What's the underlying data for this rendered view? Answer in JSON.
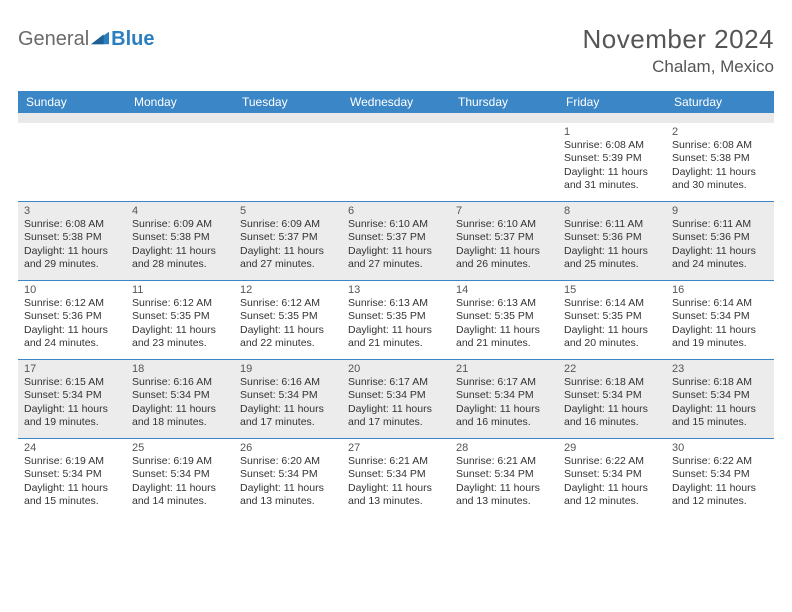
{
  "brand": {
    "part1": "General",
    "part2": "Blue"
  },
  "title": "November 2024",
  "location": "Chalam, Mexico",
  "colors": {
    "header_bg": "#3b86c6",
    "header_fg": "#ffffff",
    "alt_row_bg": "#ececec",
    "subbar_bg": "#e9e9e9",
    "rule": "#3b86c6",
    "text": "#333333",
    "muted": "#555555",
    "brand_blue": "#2b7fbf",
    "brand_gray": "#6a6a6a"
  },
  "typography": {
    "month_fontsize": 26,
    "location_fontsize": 17,
    "header_fontsize": 12,
    "cell_fontsize": 10.5
  },
  "layout": {
    "columns": 7,
    "cell_min_height": 78
  },
  "weekdays": [
    "Sunday",
    "Monday",
    "Tuesday",
    "Wednesday",
    "Thursday",
    "Friday",
    "Saturday"
  ],
  "weeks": [
    {
      "alt": false,
      "days": [
        {
          "blank": true
        },
        {
          "blank": true
        },
        {
          "blank": true
        },
        {
          "blank": true
        },
        {
          "blank": true
        },
        {
          "n": "1",
          "sunrise": "Sunrise: 6:08 AM",
          "sunset": "Sunset: 5:39 PM",
          "day1": "Daylight: 11 hours",
          "day2": "and 31 minutes."
        },
        {
          "n": "2",
          "sunrise": "Sunrise: 6:08 AM",
          "sunset": "Sunset: 5:38 PM",
          "day1": "Daylight: 11 hours",
          "day2": "and 30 minutes."
        }
      ]
    },
    {
      "alt": true,
      "days": [
        {
          "n": "3",
          "sunrise": "Sunrise: 6:08 AM",
          "sunset": "Sunset: 5:38 PM",
          "day1": "Daylight: 11 hours",
          "day2": "and 29 minutes."
        },
        {
          "n": "4",
          "sunrise": "Sunrise: 6:09 AM",
          "sunset": "Sunset: 5:38 PM",
          "day1": "Daylight: 11 hours",
          "day2": "and 28 minutes."
        },
        {
          "n": "5",
          "sunrise": "Sunrise: 6:09 AM",
          "sunset": "Sunset: 5:37 PM",
          "day1": "Daylight: 11 hours",
          "day2": "and 27 minutes."
        },
        {
          "n": "6",
          "sunrise": "Sunrise: 6:10 AM",
          "sunset": "Sunset: 5:37 PM",
          "day1": "Daylight: 11 hours",
          "day2": "and 27 minutes."
        },
        {
          "n": "7",
          "sunrise": "Sunrise: 6:10 AM",
          "sunset": "Sunset: 5:37 PM",
          "day1": "Daylight: 11 hours",
          "day2": "and 26 minutes."
        },
        {
          "n": "8",
          "sunrise": "Sunrise: 6:11 AM",
          "sunset": "Sunset: 5:36 PM",
          "day1": "Daylight: 11 hours",
          "day2": "and 25 minutes."
        },
        {
          "n": "9",
          "sunrise": "Sunrise: 6:11 AM",
          "sunset": "Sunset: 5:36 PM",
          "day1": "Daylight: 11 hours",
          "day2": "and 24 minutes."
        }
      ]
    },
    {
      "alt": false,
      "days": [
        {
          "n": "10",
          "sunrise": "Sunrise: 6:12 AM",
          "sunset": "Sunset: 5:36 PM",
          "day1": "Daylight: 11 hours",
          "day2": "and 24 minutes."
        },
        {
          "n": "11",
          "sunrise": "Sunrise: 6:12 AM",
          "sunset": "Sunset: 5:35 PM",
          "day1": "Daylight: 11 hours",
          "day2": "and 23 minutes."
        },
        {
          "n": "12",
          "sunrise": "Sunrise: 6:12 AM",
          "sunset": "Sunset: 5:35 PM",
          "day1": "Daylight: 11 hours",
          "day2": "and 22 minutes."
        },
        {
          "n": "13",
          "sunrise": "Sunrise: 6:13 AM",
          "sunset": "Sunset: 5:35 PM",
          "day1": "Daylight: 11 hours",
          "day2": "and 21 minutes."
        },
        {
          "n": "14",
          "sunrise": "Sunrise: 6:13 AM",
          "sunset": "Sunset: 5:35 PM",
          "day1": "Daylight: 11 hours",
          "day2": "and 21 minutes."
        },
        {
          "n": "15",
          "sunrise": "Sunrise: 6:14 AM",
          "sunset": "Sunset: 5:35 PM",
          "day1": "Daylight: 11 hours",
          "day2": "and 20 minutes."
        },
        {
          "n": "16",
          "sunrise": "Sunrise: 6:14 AM",
          "sunset": "Sunset: 5:34 PM",
          "day1": "Daylight: 11 hours",
          "day2": "and 19 minutes."
        }
      ]
    },
    {
      "alt": true,
      "days": [
        {
          "n": "17",
          "sunrise": "Sunrise: 6:15 AM",
          "sunset": "Sunset: 5:34 PM",
          "day1": "Daylight: 11 hours",
          "day2": "and 19 minutes."
        },
        {
          "n": "18",
          "sunrise": "Sunrise: 6:16 AM",
          "sunset": "Sunset: 5:34 PM",
          "day1": "Daylight: 11 hours",
          "day2": "and 18 minutes."
        },
        {
          "n": "19",
          "sunrise": "Sunrise: 6:16 AM",
          "sunset": "Sunset: 5:34 PM",
          "day1": "Daylight: 11 hours",
          "day2": "and 17 minutes."
        },
        {
          "n": "20",
          "sunrise": "Sunrise: 6:17 AM",
          "sunset": "Sunset: 5:34 PM",
          "day1": "Daylight: 11 hours",
          "day2": "and 17 minutes."
        },
        {
          "n": "21",
          "sunrise": "Sunrise: 6:17 AM",
          "sunset": "Sunset: 5:34 PM",
          "day1": "Daylight: 11 hours",
          "day2": "and 16 minutes."
        },
        {
          "n": "22",
          "sunrise": "Sunrise: 6:18 AM",
          "sunset": "Sunset: 5:34 PM",
          "day1": "Daylight: 11 hours",
          "day2": "and 16 minutes."
        },
        {
          "n": "23",
          "sunrise": "Sunrise: 6:18 AM",
          "sunset": "Sunset: 5:34 PM",
          "day1": "Daylight: 11 hours",
          "day2": "and 15 minutes."
        }
      ]
    },
    {
      "alt": false,
      "days": [
        {
          "n": "24",
          "sunrise": "Sunrise: 6:19 AM",
          "sunset": "Sunset: 5:34 PM",
          "day1": "Daylight: 11 hours",
          "day2": "and 15 minutes."
        },
        {
          "n": "25",
          "sunrise": "Sunrise: 6:19 AM",
          "sunset": "Sunset: 5:34 PM",
          "day1": "Daylight: 11 hours",
          "day2": "and 14 minutes."
        },
        {
          "n": "26",
          "sunrise": "Sunrise: 6:20 AM",
          "sunset": "Sunset: 5:34 PM",
          "day1": "Daylight: 11 hours",
          "day2": "and 13 minutes."
        },
        {
          "n": "27",
          "sunrise": "Sunrise: 6:21 AM",
          "sunset": "Sunset: 5:34 PM",
          "day1": "Daylight: 11 hours",
          "day2": "and 13 minutes."
        },
        {
          "n": "28",
          "sunrise": "Sunrise: 6:21 AM",
          "sunset": "Sunset: 5:34 PM",
          "day1": "Daylight: 11 hours",
          "day2": "and 13 minutes."
        },
        {
          "n": "29",
          "sunrise": "Sunrise: 6:22 AM",
          "sunset": "Sunset: 5:34 PM",
          "day1": "Daylight: 11 hours",
          "day2": "and 12 minutes."
        },
        {
          "n": "30",
          "sunrise": "Sunrise: 6:22 AM",
          "sunset": "Sunset: 5:34 PM",
          "day1": "Daylight: 11 hours",
          "day2": "and 12 minutes."
        }
      ]
    }
  ]
}
